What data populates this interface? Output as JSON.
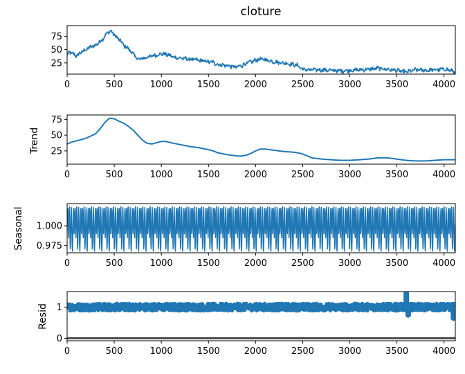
{
  "chart_data": [
    {
      "type": "line",
      "title": "cloture",
      "ylabel": "",
      "xlabel": "",
      "xlim": [
        0,
        4120
      ],
      "ylim": [
        4,
        95
      ],
      "xticks": [
        "0",
        "500",
        "1000",
        "1500",
        "2000",
        "2500",
        "3000",
        "3500",
        "4000"
      ],
      "yticks": [
        {
          "value": 25,
          "label": "25"
        },
        {
          "value": 50,
          "label": "50"
        },
        {
          "value": 75,
          "label": "75"
        }
      ],
      "noise": 4,
      "series": [
        {
          "x": [
            0,
            30,
            60,
            100,
            150,
            200,
            250,
            300,
            350,
            400,
            430,
            460,
            480,
            500,
            530,
            560,
            600,
            650,
            700,
            750,
            800,
            850,
            900,
            950,
            1000,
            1050,
            1100,
            1150,
            1200,
            1300,
            1400,
            1500,
            1550,
            1600,
            1700,
            1750,
            1800,
            1850,
            1900,
            1950,
            2000,
            2050,
            2100,
            2150,
            2200,
            2300,
            2400,
            2450,
            2500,
            2550,
            2600,
            2700,
            2800,
            2900,
            3000,
            3100,
            3200,
            3250,
            3300,
            3350,
            3400,
            3500,
            3550,
            3600,
            3650,
            3700,
            3750,
            3800,
            3900,
            4000,
            4050,
            4100,
            4120
          ],
          "y": [
            40,
            45,
            42,
            38,
            45,
            50,
            55,
            58,
            65,
            75,
            82,
            85,
            82,
            78,
            72,
            68,
            58,
            52,
            42,
            32,
            33,
            36,
            38,
            40,
            42,
            41,
            38,
            35,
            34,
            32,
            30,
            27,
            26,
            22,
            20,
            18,
            17,
            20,
            24,
            27,
            30,
            32,
            31,
            29,
            27,
            25,
            22,
            20,
            13,
            12,
            12,
            12,
            11,
            10,
            11,
            12,
            13,
            14,
            15,
            14,
            13,
            11,
            9,
            8,
            10,
            12,
            12,
            11,
            12,
            13,
            12,
            9,
            8
          ]
        }
      ]
    },
    {
      "type": "line",
      "title": "",
      "ylabel": "Trend",
      "xlabel": "",
      "xlim": [
        0,
        4120
      ],
      "ylim": [
        4,
        82
      ],
      "xticks": [
        "0",
        "500",
        "1000",
        "1500",
        "2000",
        "2500",
        "3000",
        "3500",
        "4000"
      ],
      "yticks": [
        {
          "value": 25,
          "label": "25"
        },
        {
          "value": 50,
          "label": "50"
        },
        {
          "value": 75,
          "label": "75"
        }
      ],
      "noise": 0,
      "series": [
        {
          "x": [
            0,
            50,
            100,
            200,
            300,
            350,
            400,
            450,
            500,
            550,
            600,
            650,
            700,
            750,
            800,
            850,
            900,
            950,
            1000,
            1050,
            1100,
            1200,
            1300,
            1400,
            1500,
            1550,
            1600,
            1700,
            1800,
            1850,
            1900,
            1950,
            2000,
            2050,
            2100,
            2200,
            2300,
            2400,
            2450,
            2500,
            2550,
            2600,
            2700,
            2800,
            2900,
            3000,
            3100,
            3200,
            3300,
            3400,
            3500,
            3600,
            3700,
            3800,
            3900,
            4000,
            4120
          ],
          "y": [
            36,
            39,
            41,
            45,
            52,
            60,
            70,
            77,
            76,
            72,
            69,
            64,
            58,
            50,
            42,
            37,
            36,
            38,
            40,
            40,
            38,
            35,
            32,
            30,
            27,
            25,
            22,
            19,
            17,
            17,
            18,
            21,
            25,
            28,
            28,
            26,
            24,
            23,
            22,
            20,
            17,
            14,
            12,
            11,
            10,
            10,
            11,
            12,
            14,
            14,
            12,
            10,
            9,
            9,
            10,
            11,
            11
          ]
        }
      ]
    },
    {
      "type": "line",
      "title": "",
      "ylabel": "Seasonal",
      "xlabel": "",
      "xlim": [
        0,
        4120
      ],
      "ylim": [
        0.966,
        1.028
      ],
      "xticks": [
        "0",
        "500",
        "1000",
        "1500",
        "2000",
        "2500",
        "3000",
        "3500",
        "4000"
      ],
      "yticks": [
        {
          "value": 0.975,
          "label": "0.975"
        },
        {
          "value": 1.0,
          "label": "1.000"
        }
      ],
      "period": 78,
      "pattern": [
        1.0,
        1.012,
        1.022,
        1.015,
        0.996,
        0.985,
        1.004,
        1.02,
        1.024,
        1.008,
        0.988,
        0.971,
        0.978,
        0.996,
        1.014,
        1.023,
        1.01,
        0.992,
        0.974,
        0.968,
        0.983,
        1.002,
        1.018,
        1.022,
        1.006,
        0.99
      ]
    },
    {
      "type": "line",
      "title": "",
      "ylabel": "Resid",
      "xlabel": "",
      "xlim": [
        0,
        4120
      ],
      "ylim": [
        -0.08,
        1.5
      ],
      "xticks": [
        "0",
        "500",
        "1000",
        "1500",
        "2000",
        "2500",
        "3000",
        "3500",
        "4000"
      ],
      "yticks": [
        {
          "value": 0,
          "label": "0"
        },
        {
          "value": 1,
          "label": "1"
        }
      ],
      "band": {
        "center": 1.0,
        "amplitude": 0.12
      },
      "baseline": 0,
      "outliers": [
        {
          "x": 3600,
          "y": 1.45
        },
        {
          "x": 3620,
          "y": 0.75
        },
        {
          "x": 4100,
          "y": 0.65
        }
      ]
    }
  ]
}
